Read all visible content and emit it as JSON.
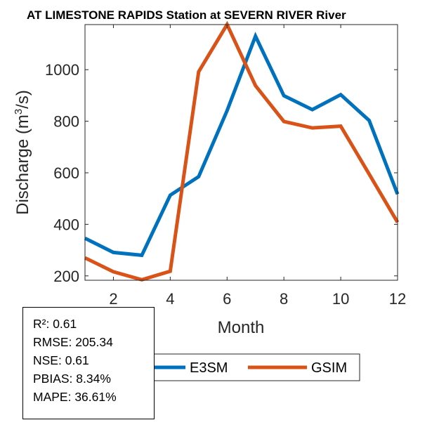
{
  "chart_data": {
    "type": "line",
    "title": "AT LIMESTONE RAPIDS  Station at  SEVERN RIVER  River",
    "xlabel": "Month",
    "ylabel": "Discharge (m³/s)",
    "ylabel_parts": {
      "pre": "Discharge (m",
      "sup": "3",
      "post": "/s)"
    },
    "x": [
      1,
      2,
      3,
      4,
      5,
      6,
      7,
      8,
      9,
      10,
      11,
      12
    ],
    "xlim": [
      1,
      12
    ],
    "ylim": [
      183,
      1175
    ],
    "xticks": [
      2,
      4,
      6,
      8,
      10,
      12
    ],
    "yticks": [
      200,
      400,
      600,
      800,
      1000
    ],
    "grid": false,
    "legend_position": "bottom-outside",
    "series": [
      {
        "name": "E3SM",
        "color": "#0072BD",
        "values": [
          346,
          291,
          280,
          513,
          585,
          841,
          1130,
          899,
          845,
          903,
          803,
          517
        ]
      },
      {
        "name": "GSIM",
        "color": "#D95319",
        "values": [
          270,
          216,
          185,
          218,
          992,
          1175,
          938,
          799,
          774,
          781,
          595,
          408
        ]
      }
    ]
  },
  "stats": {
    "r2": "R²: 0.61",
    "rmse": "RMSE: 205.34",
    "nse": "NSE: 0.61",
    "pbias": "PBIAS: 8.34%",
    "mape": "MAPE: 36.61%"
  }
}
